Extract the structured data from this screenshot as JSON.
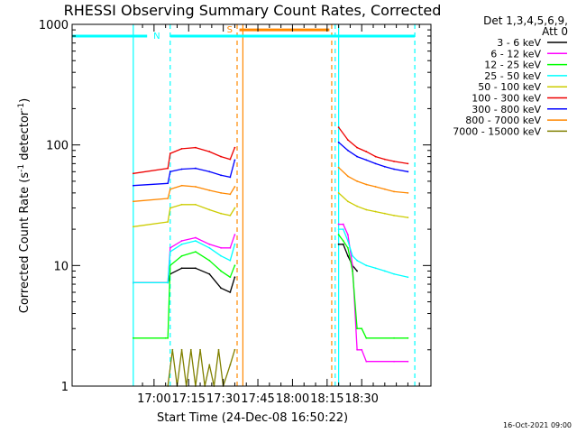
{
  "chart_data": {
    "type": "line",
    "title": "RHESSI Observing Summary Count Rates, Corrected",
    "xlabel": "Start Time (24-Dec-08 16:50:22)",
    "ylabel_main": "Corrected Count Rate (s",
    "ylabel_exp1": "-1",
    "ylabel_mid": " detector",
    "ylabel_exp2": "-1",
    "ylabel_end": ")",
    "yscale": "log",
    "ylim": [
      1,
      1000
    ],
    "xlim_minutes": [
      -35.5,
      120
    ],
    "x_ticks": [
      "17:00",
      "17:15",
      "17:30",
      "17:45",
      "18:00",
      "18:15",
      "18:30"
    ],
    "x_tick_minutes": [
      0,
      15,
      30,
      45,
      60,
      75,
      90
    ],
    "y_ticks": [
      "1",
      "10",
      "100",
      "1000"
    ],
    "y_tick_values": [
      1,
      10,
      100,
      1000
    ],
    "footer": "16-Oct-2021 09:00",
    "legend": {
      "header": [
        "Det 1,3,4,5,6,9,",
        "Att 0"
      ],
      "position": "outside-right"
    },
    "series": [
      {
        "name": "3 - 6 keV",
        "color": "#000000",
        "segments": [
          {
            "x": [
              -9,
              6,
              7,
              12,
              18,
              24,
              29,
              33,
              35
            ],
            "y": [
              7.2,
              7.2,
              8.5,
              9.5,
              9.5,
              8.5,
              6.5,
              6,
              8
            ]
          },
          {
            "x": [
              80,
              82,
              84,
              86,
              88
            ],
            "y": [
              15,
              15,
              12,
              10,
              9
            ]
          }
        ]
      },
      {
        "name": "6 - 12 keV",
        "color": "#ff00ff",
        "segments": [
          {
            "x": [
              -9,
              6,
              7,
              12,
              18,
              24,
              29,
              33,
              35
            ],
            "y": [
              7.2,
              7.2,
              14,
              16,
              17,
              15,
              14,
              14,
              18
            ]
          },
          {
            "x": [
              80,
              82,
              84,
              86,
              88,
              90,
              92,
              104,
              110
            ],
            "y": [
              22,
              22,
              18,
              10,
              2,
              2,
              1.6,
              1.6,
              1.6
            ]
          }
        ]
      },
      {
        "name": "12 - 25 keV",
        "color": "#00ff00",
        "segments": [
          {
            "x": [
              -9,
              5,
              6,
              7,
              12,
              18,
              24,
              29,
              33,
              35
            ],
            "y": [
              2.5,
              2.5,
              2.5,
              10,
              12,
              13,
              11,
              9,
              8,
              10
            ]
          },
          {
            "x": [
              80,
              82,
              84,
              86,
              88,
              90,
              92,
              104,
              110
            ],
            "y": [
              18,
              16,
              14,
              9,
              3,
              3,
              2.5,
              2.5,
              2.5
            ]
          }
        ]
      },
      {
        "name": "25 - 50 keV",
        "color": "#00ffff",
        "segments": [
          {
            "x": [
              -9,
              6,
              7,
              12,
              18,
              24,
              29,
              33,
              35
            ],
            "y": [
              7.2,
              7.2,
              13,
              15,
              16,
              14,
              12,
              11,
              15
            ]
          },
          {
            "x": [
              80,
              82,
              84,
              86,
              88,
              92,
              96,
              100,
              104,
              110
            ],
            "y": [
              20,
              20,
              16,
              12,
              11,
              10,
              9.5,
              9,
              8.5,
              8
            ]
          }
        ]
      },
      {
        "name": "50 - 100 keV",
        "color": "#cccc00",
        "segments": [
          {
            "x": [
              -9,
              6,
              7,
              12,
              18,
              24,
              29,
              33,
              35
            ],
            "y": [
              21,
              23,
              30,
              32,
              32,
              29,
              27,
              26,
              30
            ]
          },
          {
            "x": [
              80,
              84,
              88,
              92,
              96,
              100,
              104,
              110
            ],
            "y": [
              40,
              34,
              31,
              29,
              28,
              27,
              26,
              25
            ]
          }
        ]
      },
      {
        "name": "100 - 300 keV",
        "color": "#ee0000",
        "segments": [
          {
            "x": [
              -9,
              6,
              7,
              12,
              18,
              24,
              29,
              33,
              35
            ],
            "y": [
              58,
              64,
              85,
              93,
              95,
              88,
              80,
              76,
              95
            ]
          },
          {
            "x": [
              80,
              84,
              88,
              92,
              96,
              100,
              104,
              110
            ],
            "y": [
              140,
              110,
              95,
              88,
              80,
              76,
              73,
              70
            ]
          }
        ]
      },
      {
        "name": "300 - 800 keV",
        "color": "#0000ff",
        "segments": [
          {
            "x": [
              -9,
              6,
              7,
              12,
              18,
              24,
              29,
              33,
              35
            ],
            "y": [
              46,
              48,
              60,
              63,
              64,
              60,
              56,
              54,
              75
            ]
          },
          {
            "x": [
              80,
              84,
              88,
              92,
              96,
              100,
              104,
              110
            ],
            "y": [
              105,
              90,
              80,
              75,
              70,
              66,
              63,
              60
            ]
          }
        ]
      },
      {
        "name": "800 - 7000 keV",
        "color": "#ff8800",
        "segments": [
          {
            "x": [
              -9,
              6,
              7,
              12,
              18,
              24,
              29,
              33,
              35
            ],
            "y": [
              34,
              36,
              43,
              46,
              45,
              42,
              40,
              39,
              45
            ]
          },
          {
            "x": [
              80,
              84,
              88,
              92,
              96,
              100,
              104,
              110
            ],
            "y": [
              65,
              55,
              50,
              47,
              45,
              43,
              41,
              40
            ]
          }
        ]
      },
      {
        "name": "7000 - 15000 keV",
        "color": "#808000",
        "segments": [
          {
            "x": [
              6,
              8,
              10,
              12,
              14,
              16,
              18,
              20,
              22,
              24,
              26,
              28,
              30,
              33,
              35
            ],
            "y": [
              1,
              2,
              1,
              2,
              1,
              2,
              1,
              2,
              1,
              1.5,
              1,
              2,
              1,
              1.5,
              2
            ]
          }
        ]
      }
    ],
    "flag_bars": [
      {
        "label": "N",
        "color": "#00ffff",
        "segments": [
          [
            -35.5,
            -3
          ],
          [
            7,
            113
          ]
        ],
        "level": 800
      },
      {
        "label": "S",
        "color": "#ff8800",
        "segments": [
          [
            37,
            76
          ]
        ],
        "level": 900
      }
    ],
    "dashed_lines": [
      {
        "x": 7,
        "color": "#00ffff"
      },
      {
        "x": 36,
        "color": "#ff8800"
      },
      {
        "x": 77,
        "color": "#ff8800"
      },
      {
        "x": 78.5,
        "color": "#00ffff"
      },
      {
        "x": 113,
        "color": "#00ffff"
      }
    ],
    "solid_lines": [
      {
        "x": -9,
        "color": "#00ffff"
      },
      {
        "x": 38.5,
        "color": "#ff8800"
      },
      {
        "x": 80,
        "color": "#00ffff"
      }
    ]
  }
}
